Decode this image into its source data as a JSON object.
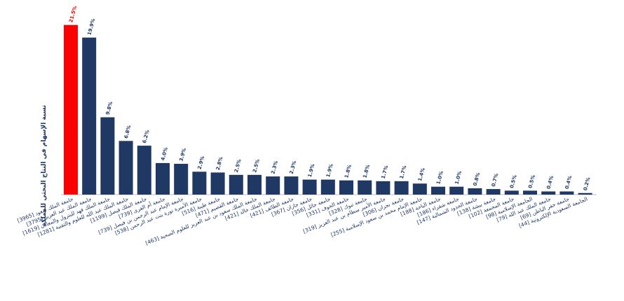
{
  "chart_data": {
    "type": "bar",
    "ylabel": "نسبة الإسهام في النتاج البحثي للمملكة",
    "xlabel": "",
    "ylim": [
      0,
      22
    ],
    "grid": false,
    "legend": "none",
    "colors": {
      "highlight": "#ff0000",
      "default": "#1f3864"
    },
    "highlight_index": 0,
    "categories": [
      "جامعة الملك سعود [3965]",
      "جامعة الملك عبد العزيز [3795]",
      "جامعة الملك فهد للبترول والمعادن [1619]",
      "جامعة الملك عبد الله للعلوم والتقنية [1281]",
      "جامعة الملك فيصل [1199]",
      "جامعة أم القرى [739]",
      "جامعة الإمام عبد الرحمن بن فيصل [739]",
      "جامعة الأميرة نورة بنت عبد الرحمن [538]",
      "جامعة طيبة [516]",
      "جامعة القصيم [471]",
      "جامعة الملك سعود بن عبد العزيز للعلوم الصحية [463]",
      "جامعة الملك خالد [421]",
      "جامعة الطائف [421]",
      "جامعة جازان [367]",
      "جامعة حائل [356]",
      "جامعة الجوف [331]",
      "جامعة تبوك [328]",
      "جامعة الأمير سطام بن عبد العزيز [319]",
      "جامعة نجران [306]",
      "جامعة الإمام محمد بن سعود الإسلامية [255]",
      "جامعة الباحة [188]",
      "جامعة شقراء [186]",
      "جامعة الحدود الشمالية [147]",
      "جامعة بيشة [138]",
      "جامعة المجمعة [102]",
      "الجامعة الإسلامية [98]",
      "جامعة الملك عبد الله [79]",
      "جامعة حفر الباطن [69]",
      "الجامعة السعودية الإلكترونية [44]"
    ],
    "values": [
      21.5,
      19.9,
      9.8,
      6.8,
      6.2,
      4.0,
      3.9,
      2.9,
      2.8,
      2.5,
      2.5,
      2.3,
      2.3,
      1.9,
      1.9,
      1.8,
      1.8,
      1.7,
      1.7,
      1.4,
      1.0,
      1.0,
      0.8,
      0.7,
      0.5,
      0.5,
      0.4,
      0.4,
      0.2
    ],
    "data_labels": [
      "21.5%",
      "19.9%",
      "9.8%",
      "6.8%",
      "6.2%",
      "4.0%",
      "3.9%",
      "2.9%",
      "2.8%",
      "2.5%",
      "2.5%",
      "2.3%",
      "2.3%",
      "1.9%",
      "1.9%",
      "1.8%",
      "1.8%",
      "1.7%",
      "1.7%",
      "1.4%",
      "1.0%",
      "1.0%",
      "0.8%",
      "0.7%",
      "0.5%",
      "0.5%",
      "0.4%",
      "0.4%",
      "0.2%"
    ]
  }
}
